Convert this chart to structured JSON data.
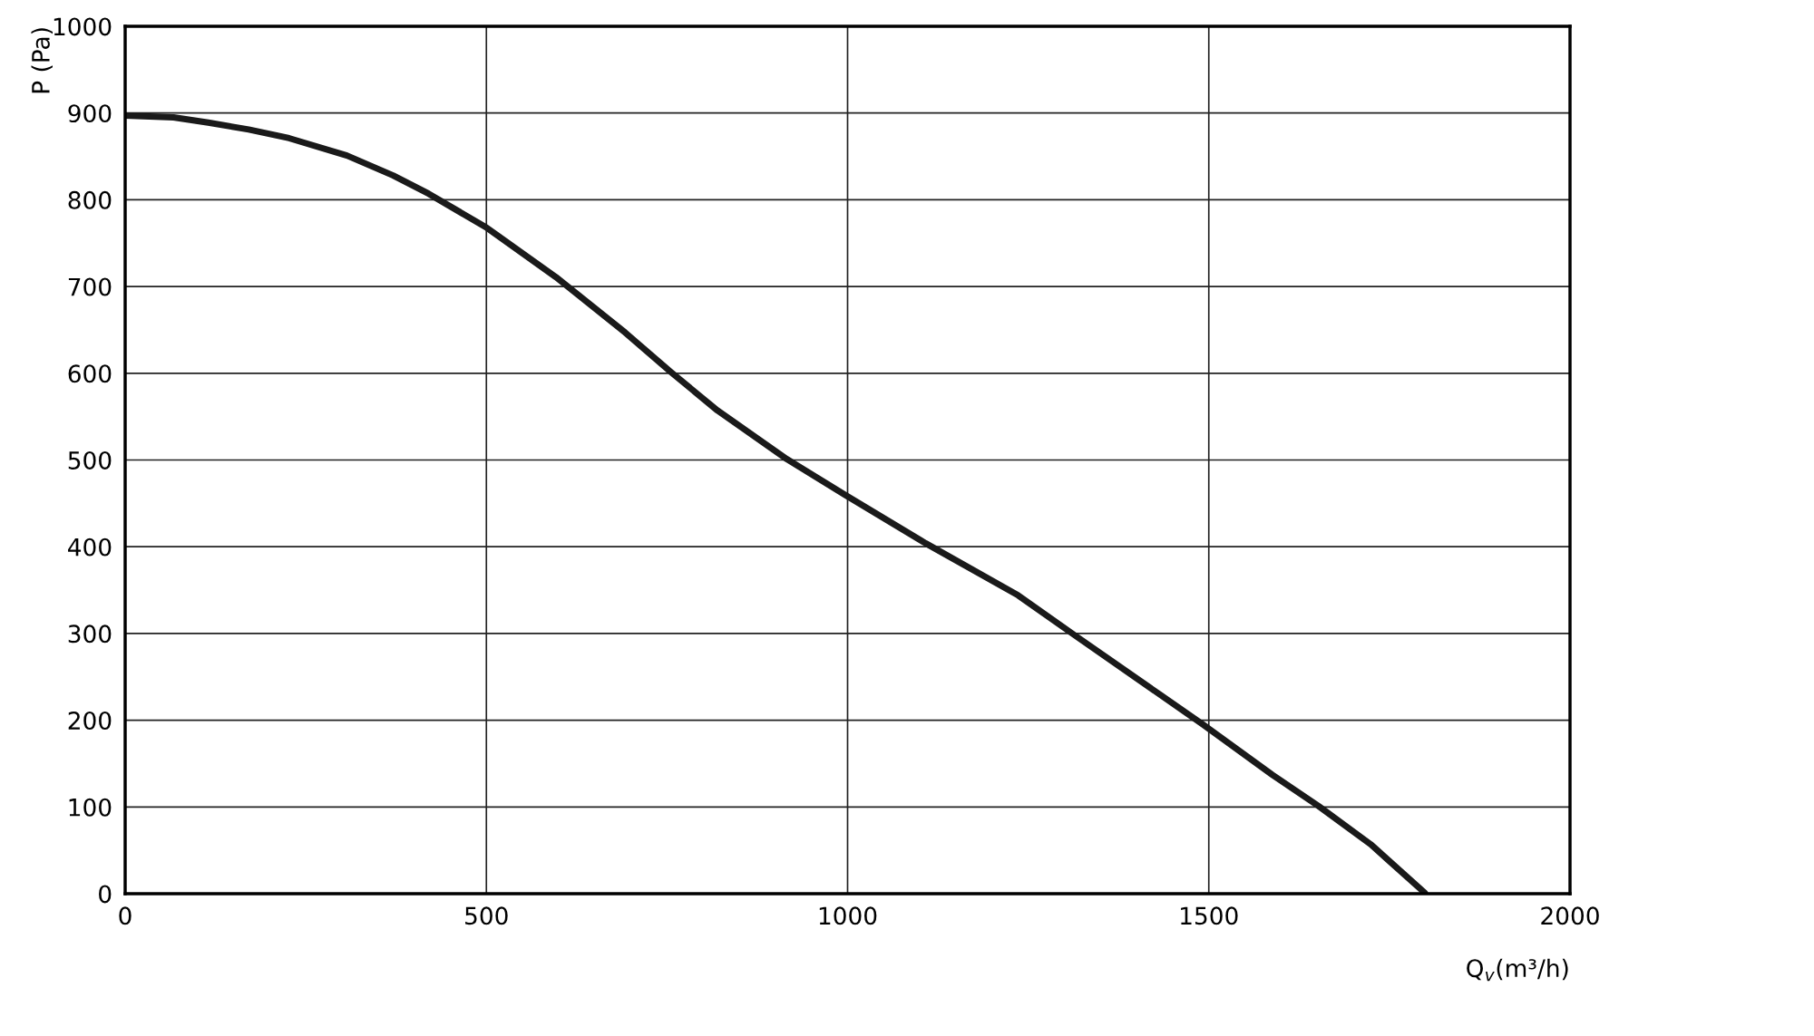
{
  "chart_data": {
    "type": "line",
    "xlabel": "Q$_{v}$(m³/h)",
    "ylabel": "P (Pa)",
    "x": [
      0,
      67,
      115,
      171,
      227,
      307,
      371,
      420,
      500,
      596,
      692,
      756,
      820,
      916,
      996,
      1108,
      1236,
      1316,
      1492,
      1588,
      1652,
      1724,
      1799
    ],
    "series": [
      {
        "color": "#1a1a1a",
        "values": [
          897,
          895,
          889,
          881,
          871,
          851,
          828,
          807,
          768,
          711,
          647,
          601,
          557,
          501,
          460,
          404,
          344,
          297,
          195,
          137,
          101,
          57,
          1
        ]
      }
    ],
    "xlim": [
      0,
      2000
    ],
    "ylim": [
      0,
      1000
    ],
    "xticks": [
      0,
      500,
      1000,
      1500,
      2000
    ],
    "yticks": [
      0,
      100,
      200,
      300,
      400,
      500,
      600,
      700,
      800,
      900,
      1000
    ],
    "grid": true,
    "marker": "none",
    "line_style": "solid",
    "legend": false
  }
}
